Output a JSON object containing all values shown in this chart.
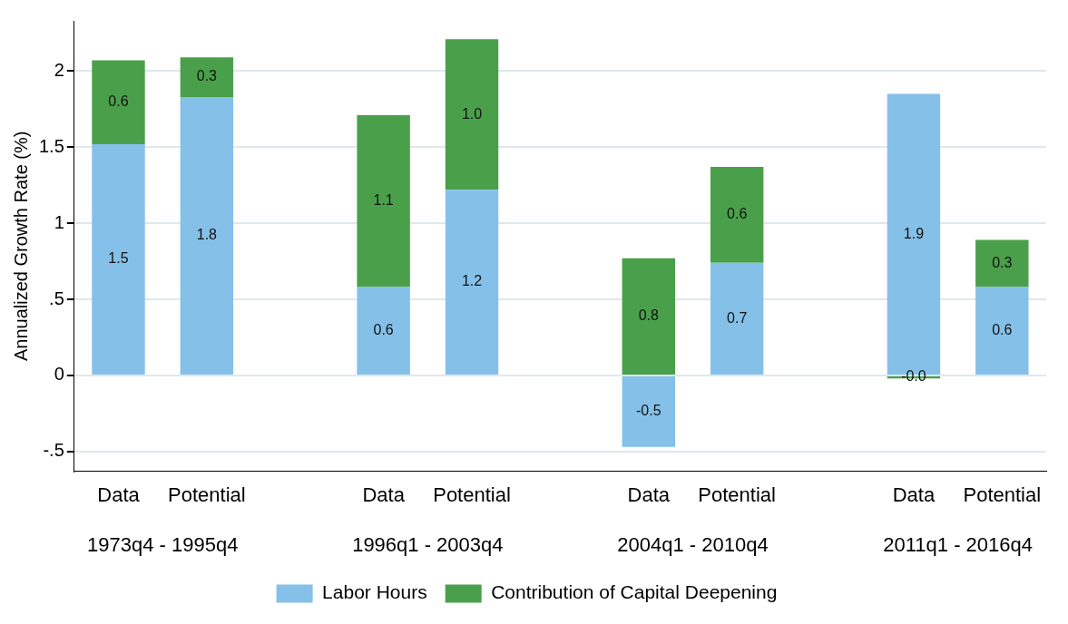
{
  "chart_data": {
    "type": "bar",
    "stacked": true,
    "ylabel": "Annualized Growth Rate (%)",
    "categories": [
      "Data",
      "Potential",
      "Data",
      "Potential",
      "Data",
      "Potential",
      "Data",
      "Potential"
    ],
    "annotations": [
      "1973q4 - 1995q4",
      "1996q1 - 2003q4",
      "2004q1 - 2010q4",
      "2011q1 - 2016q4"
    ],
    "series": [
      {
        "name": "Labor Hours",
        "color": "#85c0e9",
        "values": [
          1.52,
          1.83,
          0.58,
          1.22,
          -0.47,
          0.74,
          1.85,
          0.58
        ],
        "value_labels": [
          "1.5",
          "1.8",
          "0.6",
          "1.2",
          "-0.5",
          "0.7",
          "1.9",
          "0.6"
        ]
      },
      {
        "name": "Contribution of Capital Deepening",
        "color": "#4aa04a",
        "values": [
          0.55,
          0.26,
          1.13,
          0.99,
          0.77,
          0.63,
          -0.02,
          0.31
        ],
        "value_labels": [
          "0.6",
          "0.3",
          "1.1",
          "1.0",
          "0.8",
          "0.6",
          "-0.0",
          "0.3"
        ]
      }
    ],
    "ylim": [
      -0.63,
      2.33
    ],
    "yticks": [
      {
        "value": -0.5,
        "label": "-.5"
      },
      0,
      {
        "value": 0.5,
        "label": ".5"
      },
      1,
      1.5,
      2
    ],
    "grid": "y",
    "legend": "bottom"
  }
}
